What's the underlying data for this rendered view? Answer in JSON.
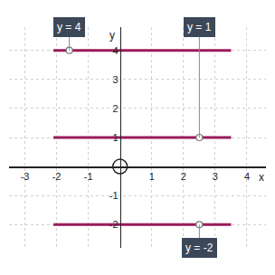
{
  "chart_data": {
    "type": "line",
    "x_label": "x",
    "y_label": "y",
    "xlim": [
      -3.5,
      4.6
    ],
    "ylim": [
      -2.8,
      4.8
    ],
    "xticks": [
      -3,
      -2,
      -1,
      1,
      2,
      3,
      4
    ],
    "yticks": [
      -2,
      -1,
      1,
      2,
      3,
      4
    ],
    "grid": true,
    "color": "#9b1b5a",
    "series": [
      {
        "x": [
          -2.1,
          3.5
        ],
        "values": [
          4,
          4
        ]
      },
      {
        "x": [
          -2.1,
          3.5
        ],
        "values": [
          1,
          1
        ]
      },
      {
        "x": [
          -2.1,
          3.5
        ],
        "values": [
          -2,
          -2
        ]
      }
    ],
    "annotations": [
      {
        "text": "y = 4",
        "x": -1.6,
        "y": 4
      },
      {
        "text": "y = 1",
        "x": 2.5,
        "y": 1
      },
      {
        "text": "y = -2",
        "x": 2.5,
        "y": -2
      }
    ]
  }
}
